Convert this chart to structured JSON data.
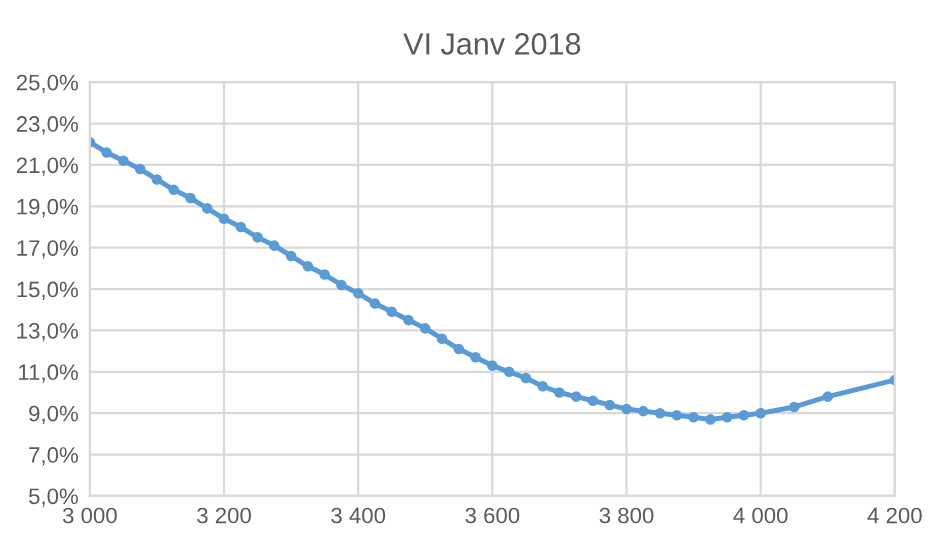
{
  "chart_data": {
    "type": "line",
    "title": "VI Janv 2018",
    "x": [
      3000,
      3025,
      3050,
      3075,
      3100,
      3125,
      3150,
      3175,
      3200,
      3225,
      3250,
      3275,
      3300,
      3325,
      3350,
      3375,
      3400,
      3425,
      3450,
      3475,
      3500,
      3525,
      3550,
      3575,
      3600,
      3625,
      3650,
      3675,
      3700,
      3725,
      3750,
      3775,
      3800,
      3825,
      3850,
      3875,
      3900,
      3925,
      3950,
      3975,
      4000,
      4050,
      4100,
      4200
    ],
    "series": [
      {
        "color": "#5b9bd5",
        "values": [
          22.1,
          21.6,
          21.2,
          20.8,
          20.3,
          19.8,
          19.4,
          18.9,
          18.4,
          18.0,
          17.5,
          17.1,
          16.6,
          16.1,
          15.7,
          15.2,
          14.8,
          14.3,
          13.9,
          13.5,
          13.1,
          12.6,
          12.1,
          11.7,
          11.3,
          11.0,
          10.7,
          10.3,
          10.0,
          9.8,
          9.6,
          9.4,
          9.2,
          9.1,
          9.0,
          8.9,
          8.8,
          8.7,
          8.8,
          8.9,
          9.0,
          9.3,
          9.8,
          10.6
        ]
      }
    ],
    "xlim": [
      3000,
      4200
    ],
    "xticks": [
      {
        "value": 3000,
        "label": "3 000"
      },
      {
        "value": 3200,
        "label": "3 200"
      },
      {
        "value": 3400,
        "label": "3 400"
      },
      {
        "value": 3600,
        "label": "3 600"
      },
      {
        "value": 3800,
        "label": "3 800"
      },
      {
        "value": 4000,
        "label": "4 000"
      },
      {
        "value": 4200,
        "label": "4 200"
      }
    ],
    "ylim": [
      5,
      25
    ],
    "yticks": [
      {
        "value": 5,
        "label": "5,0%"
      },
      {
        "value": 7,
        "label": "7,0%"
      },
      {
        "value": 9,
        "label": "9,0%"
      },
      {
        "value": 11,
        "label": "11,0%"
      },
      {
        "value": 13,
        "label": "13,0%"
      },
      {
        "value": 15,
        "label": "15,0%"
      },
      {
        "value": 17,
        "label": "17,0%"
      },
      {
        "value": 19,
        "label": "19,0%"
      },
      {
        "value": 21,
        "label": "21,0%"
      },
      {
        "value": 23,
        "label": "23,0%"
      },
      {
        "value": 25,
        "label": "25,0%"
      }
    ],
    "grid": true,
    "legend": false,
    "marker": "circle",
    "line_style": "solid"
  }
}
